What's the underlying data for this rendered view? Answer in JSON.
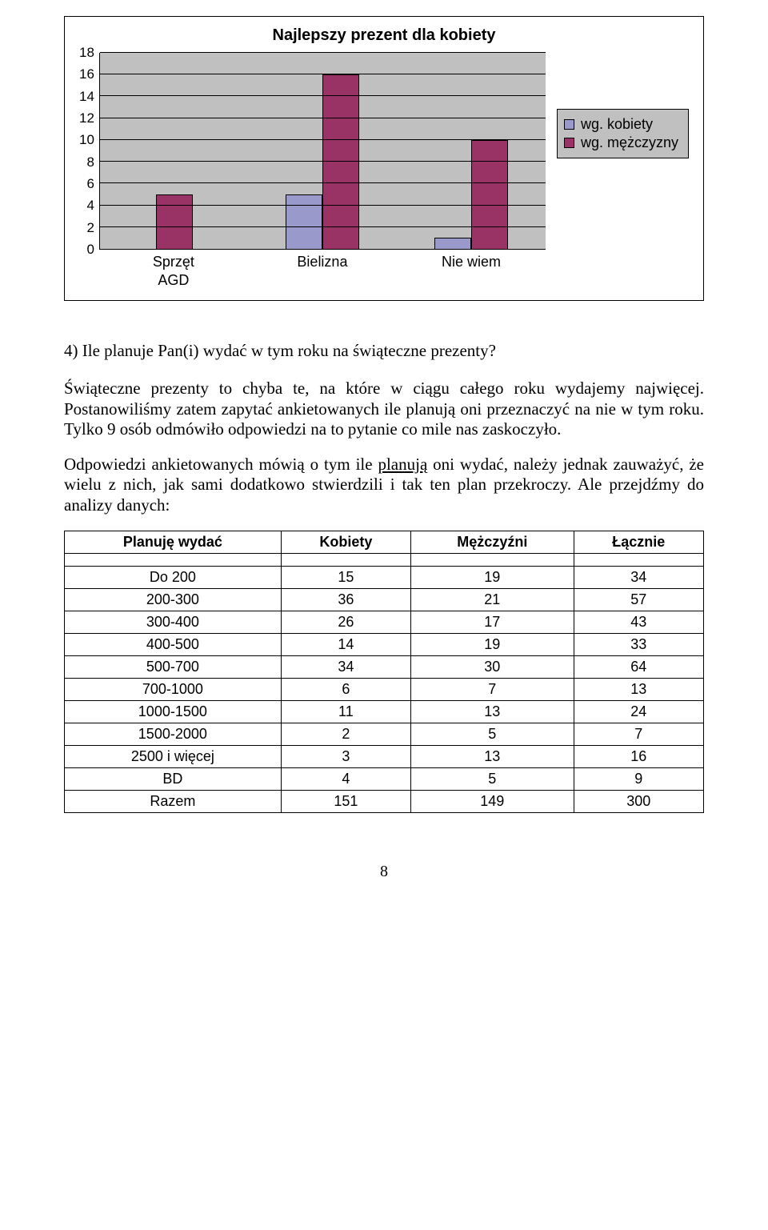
{
  "chart": {
    "type": "bar",
    "title": "Najlepszy prezent dla kobiety",
    "categories": [
      "Sprzęt AGD",
      "Bielizna",
      "Nie wiem"
    ],
    "series": [
      {
        "name": "wg. kobiety",
        "color": "#9999cc",
        "values": [
          0,
          5,
          1
        ]
      },
      {
        "name": "wg. mężczyzny",
        "color": "#993366",
        "values": [
          5,
          16,
          10
        ]
      }
    ],
    "y_ticks": [
      0,
      2,
      4,
      6,
      8,
      10,
      12,
      14,
      16,
      18
    ],
    "ylim": [
      0,
      18
    ],
    "plot_background": "#c0c0c0",
    "grid_color": "#000000",
    "bar_border": "#000000",
    "legend_background": "#c0c0c0"
  },
  "section": {
    "heading": "4)  Ile planuje Pan(i) wydać w tym roku na świąteczne prezenty?",
    "para1": "Świąteczne prezenty to chyba te, na które w ciągu całego roku wydajemy najwięcej. Postanowiliśmy zatem zapytać ankietowanych ile planują oni przeznaczyć na nie w tym roku. Tylko 9 osób odmówiło odpowiedzi na to pytanie co mile nas zaskoczyło.",
    "para2_pre": "Odpowiedzi ankietowanych mówią o tym ile ",
    "para2_u": "planują",
    "para2_post": " oni wydać, należy jednak zauważyć, że wielu z nich, jak sami dodatkowo stwierdzili i tak ten plan przekroczy. Ale przejdźmy do analizy danych:"
  },
  "table": {
    "columns": [
      "Planuję wydać",
      "Kobiety",
      "Mężczyźni",
      "Łącznie"
    ],
    "rows": [
      [
        "Do 200",
        15,
        19,
        34
      ],
      [
        "200-300",
        36,
        21,
        57
      ],
      [
        "300-400",
        26,
        17,
        43
      ],
      [
        "400-500",
        14,
        19,
        33
      ],
      [
        "500-700",
        34,
        30,
        64
      ],
      [
        "700-1000",
        6,
        7,
        13
      ],
      [
        "1000-1500",
        11,
        13,
        24
      ],
      [
        "1500-2000",
        2,
        5,
        7
      ],
      [
        "2500 i więcej",
        3,
        13,
        16
      ],
      [
        "BD",
        4,
        5,
        9
      ],
      [
        "Razem",
        151,
        149,
        300
      ]
    ]
  },
  "page_number": "8"
}
